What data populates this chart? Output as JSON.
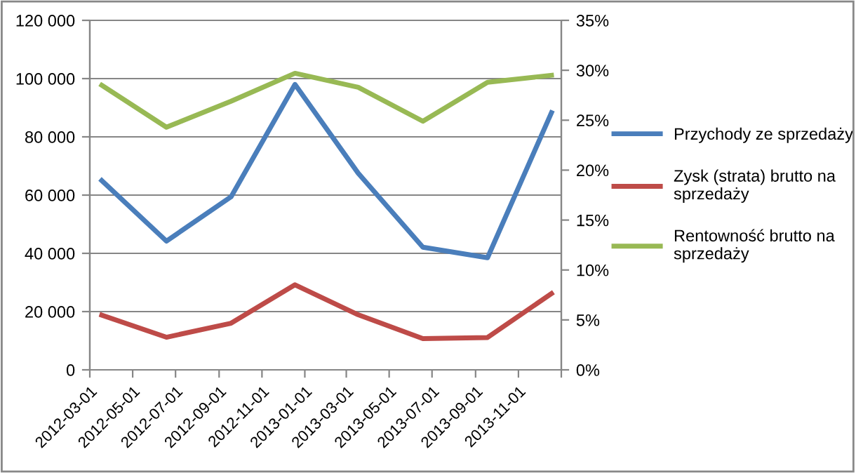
{
  "chart_data": {
    "type": "line",
    "x": [
      "2012-03-18",
      "2012-06-18",
      "2012-09-18",
      "2012-12-18",
      "2013-03-18",
      "2013-06-18",
      "2013-09-18",
      "2013-12-18"
    ],
    "series": [
      {
        "name": "Przychody ze sprzedaży",
        "color": "#4a7ebb",
        "values": [
          65000,
          44200,
          59400,
          98000,
          67500,
          42100,
          38500,
          88300
        ]
      },
      {
        "name": "Zysk (strata) brutto na sprzedaży",
        "color": "#be4b48",
        "values": [
          18800,
          11200,
          16000,
          29200,
          18900,
          10700,
          11100,
          26200
        ]
      },
      {
        "name": "Rentowność brutto na sprzedaży",
        "color": "#98b954",
        "axis": "y2",
        "values": [
          28.5,
          24.3,
          26.9,
          29.7,
          28.3,
          24.9,
          28.8,
          29.5
        ]
      }
    ],
    "xlim": [
      "2012-03-01",
      "2014-01-01"
    ],
    "xticks": [
      "2012-03-01",
      "2012-05-01",
      "2012-07-01",
      "2012-09-01",
      "2012-11-01",
      "2013-01-01",
      "2013-03-01",
      "2013-05-01",
      "2013-07-01",
      "2013-09-01",
      "2013-11-01",
      {
        "value": "2014-01-01",
        "label": null
      }
    ],
    "ylim": [
      0,
      120000
    ],
    "yticks": [
      {
        "value": 0,
        "label": "0"
      },
      {
        "value": 20000,
        "label": "20 000"
      },
      {
        "value": 40000,
        "label": "40 000"
      },
      {
        "value": 60000,
        "label": "60 000"
      },
      {
        "value": 80000,
        "label": "80 000"
      },
      {
        "value": 100000,
        "label": "100 000"
      },
      {
        "value": 120000,
        "label": "120 000"
      }
    ],
    "y2lim": [
      0,
      35
    ],
    "y2ticks": [
      {
        "value": 0,
        "label": "0%"
      },
      {
        "value": 5,
        "label": "5%"
      },
      {
        "value": 10,
        "label": "10%"
      },
      {
        "value": 15,
        "label": "15%"
      },
      {
        "value": 20,
        "label": "20%"
      },
      {
        "value": 25,
        "label": "25%"
      },
      {
        "value": 30,
        "label": "30%"
      },
      {
        "value": 35,
        "label": "35%"
      }
    ],
    "grid": "y",
    "legend": "right",
    "marker": "none",
    "line_style": "solid"
  }
}
